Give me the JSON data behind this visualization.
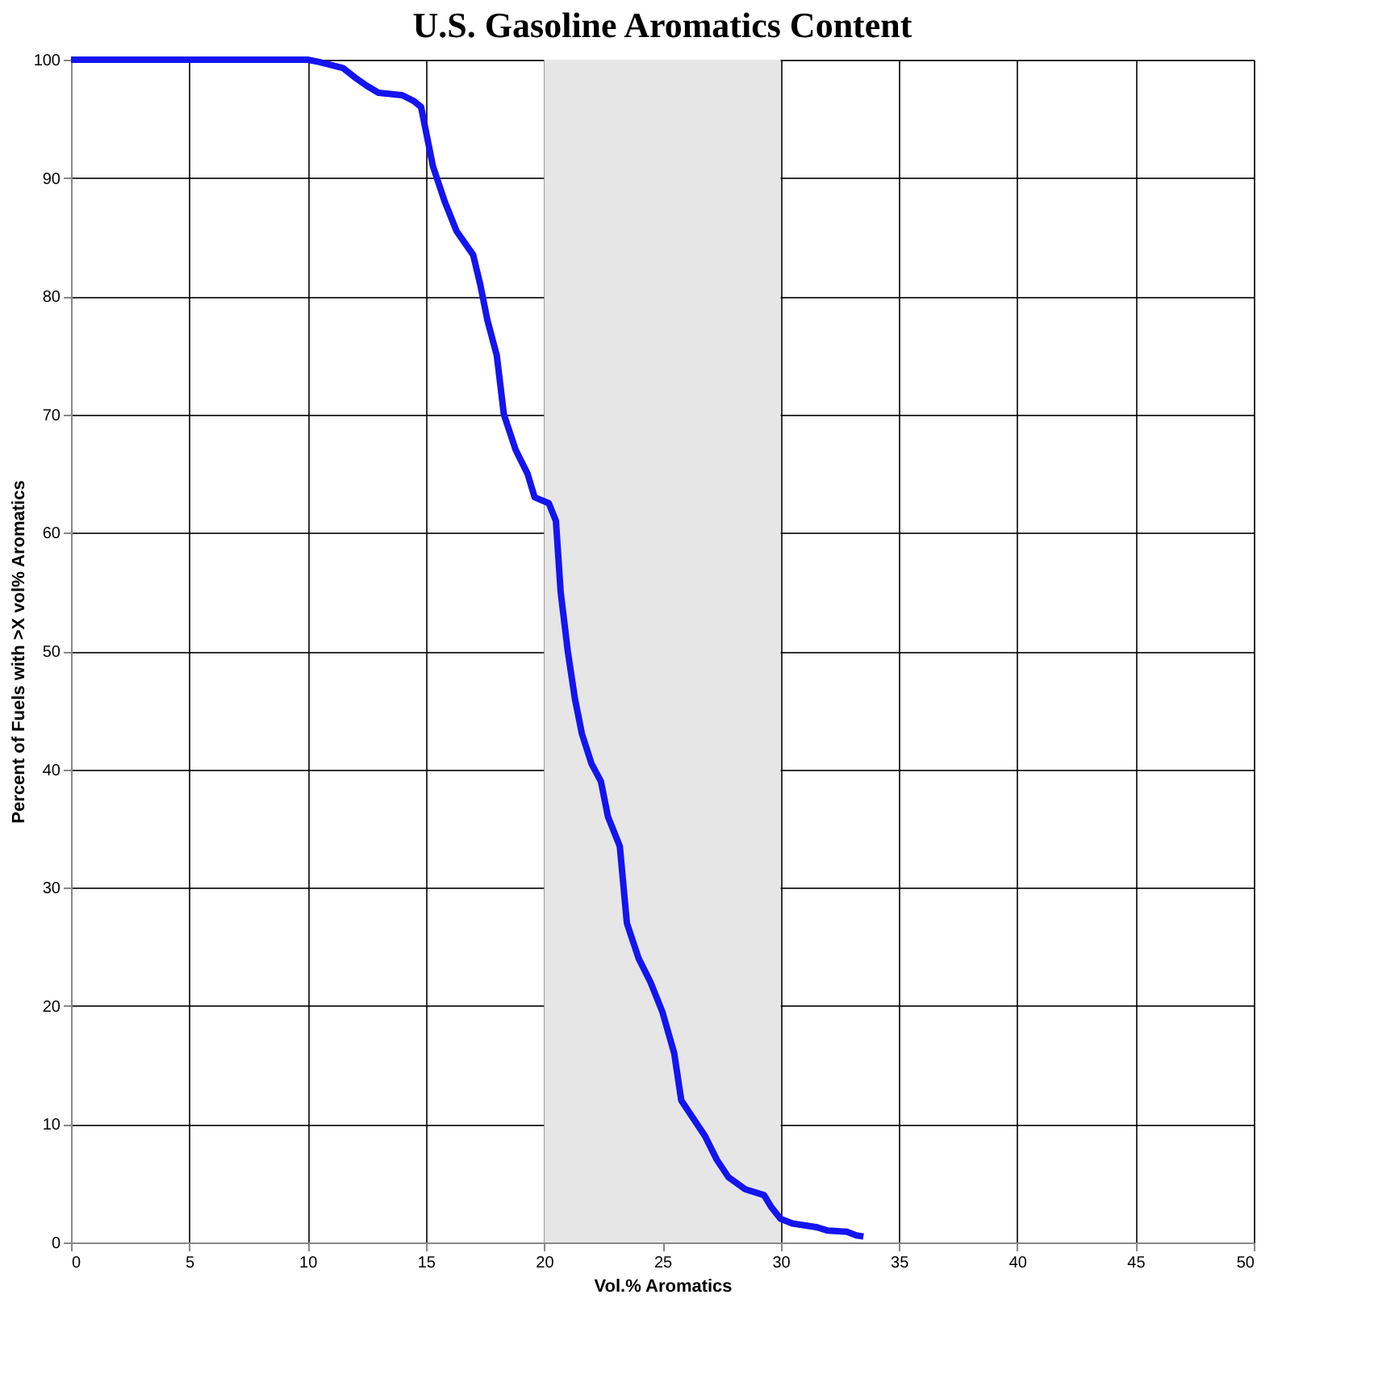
{
  "chart_data": {
    "type": "line",
    "title": "U.S. Gasoline Aromatics Content",
    "xlabel": "Vol.% Aromatics",
    "ylabel": "Percent of Fuels with >X vol% Aromatics",
    "xlim": [
      0,
      50
    ],
    "xticks": [
      0,
      5,
      10,
      15,
      20,
      25,
      30,
      35,
      40,
      45,
      50
    ],
    "ylim": [
      0,
      100
    ],
    "yticks": [
      0,
      10,
      20,
      30,
      40,
      50,
      60,
      70,
      80,
      90,
      100
    ],
    "grid": true,
    "marker": "none",
    "line_style": "solid",
    "bands": [
      {
        "axis": "x",
        "from": 20,
        "to": 30,
        "color": "#e6e6e6"
      }
    ],
    "series": [
      {
        "color": "#1414f0",
        "x": [
          0,
          10,
          10.5,
          11.5,
          12,
          12.5,
          13,
          14,
          14.5,
          14.8,
          15,
          15.3,
          15.8,
          16.3,
          17,
          17.3,
          17.6,
          18,
          18.3,
          18.8,
          19.3,
          19.6,
          20.2,
          20.5,
          20.7,
          21,
          21.3,
          21.6,
          22,
          22.4,
          22.7,
          23.2,
          23.5,
          24,
          24.5,
          25,
          25.5,
          25.8,
          26.3,
          26.8,
          27.3,
          27.8,
          28.5,
          29.3,
          29.6,
          30,
          30.5,
          31.5,
          32,
          32.8,
          33.2,
          33.5
        ],
        "values": [
          100,
          100,
          99.8,
          99.3,
          98.5,
          97.8,
          97.2,
          97,
          96.5,
          96,
          94,
          91,
          88,
          85.5,
          83.5,
          81,
          78,
          75,
          70,
          67,
          65,
          63,
          62.5,
          61,
          55,
          50,
          46,
          43,
          40.5,
          39,
          36,
          33.5,
          27,
          24,
          22,
          19.5,
          16,
          12,
          10.5,
          9,
          7,
          5.5,
          4.5,
          4,
          3,
          2,
          1.6,
          1.3,
          1,
          0.9,
          0.6,
          0.5
        ]
      }
    ]
  }
}
